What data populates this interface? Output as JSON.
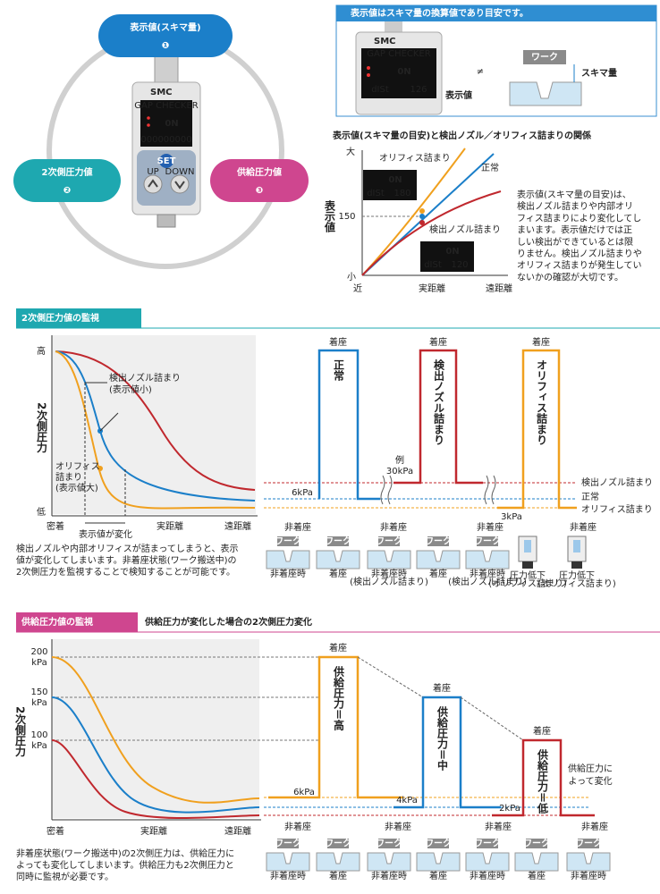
{
  "overview": {
    "display_value": [
      "表示値(スキマ量)",
      "❶"
    ],
    "secondary_pressure": [
      "2次側圧力値",
      "❷"
    ],
    "supply_pressure": [
      "供給圧力値",
      "❸"
    ],
    "device": {
      "brand": "SMC",
      "model": "GAP CHECKER",
      "screen_main": "0N",
      "screen_sub": "000000000",
      "set": "SET",
      "up": "UP",
      "down": "DOWN"
    }
  },
  "note_box": {
    "header": "表示値はスキマ量の換算値であり目安です。",
    "not_equal": "≠",
    "device": {
      "brand": "SMC",
      "model": "GAP CHECKER",
      "screen_main": "0N",
      "screen_sub_label": "dISt",
      "screen_sub_value": "126"
    },
    "display_label": "表示値",
    "work": "ワーク",
    "gap": "スキマ量"
  },
  "relation": {
    "title": "表示値(スキマ量の目安)と検出ノズル／オリフィス詰まりの関係",
    "y_label": "表示値",
    "y_high": "大",
    "y_mark": "150",
    "y_low": "小",
    "x_near": "近",
    "x_mid": "実距離",
    "x_far": "遠距離",
    "curves": [
      "オリフィス詰まり",
      "正常",
      "検出ノズル詰まり"
    ],
    "displays": [
      {
        "main": "0N",
        "label": "dISt",
        "value": "180"
      },
      {
        "main": "0N",
        "label": "dISt",
        "value": "120"
      }
    ],
    "description": [
      "表示値(スキマ量の目安)は、",
      "検出ノズル詰まりや内部オリ",
      "フィス詰まりにより変化してし",
      "まいます。表示値だけでは正",
      "しい検出ができているとは限",
      "りません。検出ノズル詰まりや",
      "オリフィス詰まりが発生してい",
      "ないかの確認が大切です。"
    ]
  },
  "secondary": {
    "heading": "2次側圧力値の監視",
    "left": {
      "y_label": "2次側圧力",
      "y_high": "高",
      "y_low": "低",
      "x_start": "密着",
      "x_change": "表示値が変化",
      "x_mid": "実距離",
      "x_far": "遠距離",
      "annotation_nozzle": [
        "検出ノズル詰まり",
        "(表示値小)"
      ],
      "annotation_orifice": [
        "オリフィス",
        "詰まり",
        "(表示値大)"
      ]
    },
    "right": {
      "seated": [
        "着座",
        "着座",
        "着座"
      ],
      "pulses": [
        "正常",
        "検出ノズル詰まり",
        "オリフィス詰まり"
      ],
      "example": [
        "例",
        "30kPa"
      ],
      "level_normal": "6kPa",
      "level_orifice": "3kPa",
      "legend": [
        "検出ノズル詰まり",
        "正常",
        "オリフィス詰まり"
      ],
      "unseated": [
        "非着座",
        "非着座",
        "非着座",
        "非着座"
      ]
    },
    "icons": [
      {
        "work": "ワーク",
        "caption": [
          "非着座時"
        ]
      },
      {
        "work": "ワーク",
        "caption": [
          "着座"
        ]
      },
      {
        "work": "ワーク",
        "caption": [
          "非着座時",
          "(検出ノズル詰まり)"
        ]
      },
      {
        "work": "ワーク",
        "caption": [
          "着座"
        ]
      },
      {
        "work": "ワーク",
        "caption": [
          "非着座時",
          "(検出ノズル詰まり)"
        ]
      },
      {
        "caption": [
          "圧力低下",
          "(オリフィス詰まり)"
        ]
      },
      {
        "caption": [
          "圧力低下",
          "(オリフィス詰まり)"
        ]
      }
    ],
    "description": [
      "検出ノズルや内部オリフィスが詰まってしまうと、表示",
      "値が変化してしまいます。非着座状態(ワーク搬送中)の",
      "2次側圧力を監視することで検知することが可能です。"
    ]
  },
  "supply": {
    "heading": "供給圧力値の監視",
    "subheading": "供給圧力が変化した場合の2次側圧力変化",
    "left": {
      "y_label": "2次側圧力",
      "levels": [
        [
          "200",
          "kPa"
        ],
        [
          "150",
          "kPa"
        ],
        [
          "100",
          "kPa"
        ]
      ],
      "x_start": "密着",
      "x_mid": "実距離",
      "x_far": "遠距離"
    },
    "right": {
      "seated": [
        "着座",
        "着座",
        "着座"
      ],
      "pulses": [
        "供給圧力＝高",
        "供給圧力＝中",
        "供給圧力＝低"
      ],
      "levels": [
        "6kPa",
        "4kPa",
        "2kPa"
      ],
      "note": [
        "供給圧力に",
        "よって変化"
      ],
      "unseated": [
        "非着座",
        "非着座",
        "非着座",
        "非着座"
      ]
    },
    "icons": [
      {
        "work": "ワーク",
        "caption": [
          "非着座時"
        ]
      },
      {
        "work": "ワーク",
        "caption": [
          "着座"
        ]
      },
      {
        "work": "ワーク",
        "caption": [
          "非着座時"
        ]
      },
      {
        "work": "ワーク",
        "caption": [
          "着座"
        ]
      },
      {
        "work": "ワーク",
        "caption": [
          "非着座時"
        ]
      },
      {
        "work": "ワーク",
        "caption": [
          "着座"
        ]
      },
      {
        "work": "ワーク",
        "caption": [
          "非着座時"
        ]
      }
    ],
    "description": [
      "非着座状態(ワーク搬送中)の2次側圧力は、供給圧力に",
      "よっても変化してしまいます。供給圧力も2次側圧力と",
      "同時に監視が必要です。"
    ]
  }
}
